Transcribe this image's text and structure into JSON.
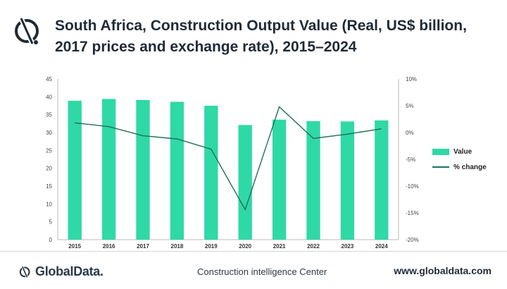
{
  "header": {
    "title": "South Africa, Construction Output Value (Real, US$ billion, 2017 prices and exchange rate), 2015–2024"
  },
  "chart_data": {
    "type": "bar",
    "categories": [
      "2015",
      "2016",
      "2017",
      "2018",
      "2019",
      "2020",
      "2021",
      "2022",
      "2023",
      "2024"
    ],
    "series": [
      {
        "name": "Value",
        "type": "bar",
        "axis": "left",
        "color": "#2fd9a6",
        "values": [
          38.9,
          39.4,
          39.1,
          38.6,
          37.5,
          32.1,
          33.6,
          33.2,
          33.1,
          33.4
        ]
      },
      {
        "name": "% change",
        "type": "line",
        "axis": "right",
        "color": "#1f6f5c",
        "values": [
          1.8,
          1.1,
          -0.6,
          -1.2,
          -3.1,
          -14.4,
          4.8,
          -1.1,
          -0.3,
          0.7
        ]
      }
    ],
    "ylim_left": [
      0,
      45
    ],
    "yticks_left": [
      0,
      5,
      10,
      15,
      20,
      25,
      30,
      35,
      40,
      45
    ],
    "ylim_right": [
      -20,
      10
    ],
    "yticks_right": [
      "-20%",
      "-15%",
      "-10%",
      "-5%",
      "0%",
      "5%",
      "10%"
    ],
    "legend_position": "right",
    "grid": false
  },
  "footer": {
    "brand": "GlobalData.",
    "center": "Construction intelligence Center",
    "url": "www.globaldata.com"
  }
}
